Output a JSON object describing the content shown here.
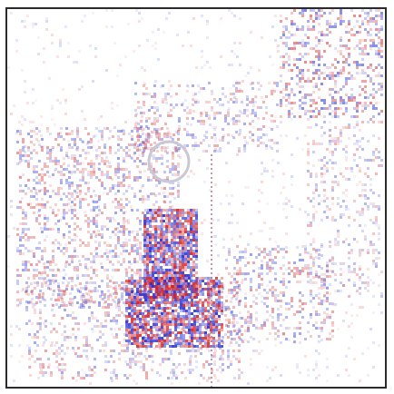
{
  "image": {
    "kind": "saliency-heatmap",
    "colormap": {
      "negative": "#1f2bd6",
      "neutral": "#ffffff",
      "positive": "#d61f1f"
    },
    "visible_text": []
  }
}
